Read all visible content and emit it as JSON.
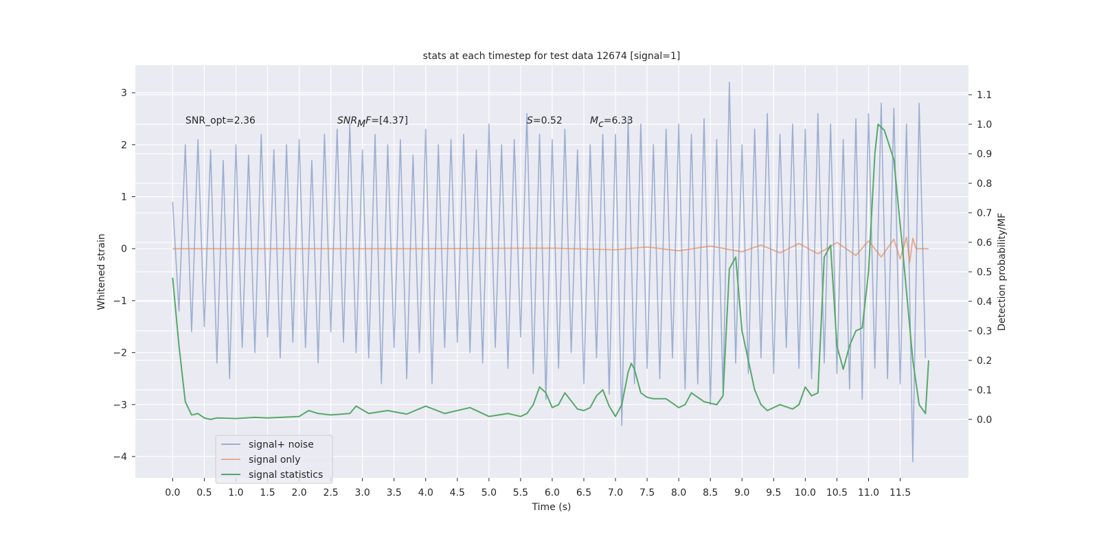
{
  "chart_data": {
    "type": "line",
    "title": "stats at each timestep for test data 12674 [signal=1]",
    "xlabel": "Time (s)",
    "ylabel": "Whitened strain",
    "y2label": "Detection probability/MF",
    "xlim": [
      -0.59,
      12.58
    ],
    "ylim": [
      -4.41,
      3.53
    ],
    "y2lim": [
      -0.198,
      1.2
    ],
    "xticks": [
      {
        "value": 0,
        "label": "0.0"
      },
      0.5,
      {
        "value": 1,
        "label": "1.0"
      },
      1.5,
      {
        "value": 2,
        "label": "2.0"
      },
      2.5,
      {
        "value": 3,
        "label": "3.0"
      },
      3.5,
      {
        "value": 4,
        "label": "4.0"
      },
      4.5,
      {
        "value": 5,
        "label": "5.0"
      },
      5.5,
      {
        "value": 6,
        "label": "6.0"
      },
      6.5,
      {
        "value": 7,
        "label": "7.0"
      },
      7.5,
      {
        "value": 8,
        "label": "8.0"
      },
      8.5,
      {
        "value": 9,
        "label": "9.0"
      },
      9.5,
      {
        "value": 10,
        "label": "10.0"
      },
      10.5,
      {
        "value": 11,
        "label": "11.0"
      },
      11.5
    ],
    "yticks": [
      {
        "value": -4,
        "label": "−4"
      },
      {
        "value": -3,
        "label": "−3"
      },
      {
        "value": -2,
        "label": "−2"
      },
      {
        "value": -1,
        "label": "−1"
      },
      0,
      1,
      2,
      3
    ],
    "y2ticks": [
      {
        "value": 0,
        "label": "0.0"
      },
      0.1,
      0.2,
      0.3,
      0.4,
      0.5,
      0.6,
      0.7,
      0.8,
      0.9,
      {
        "value": 1,
        "label": "1.0"
      },
      1.1
    ],
    "grid": true,
    "legend": "lower left",
    "annotations": [
      [
        {
          "text": "SNR_opt=2.36",
          "style": "normal"
        }
      ],
      [
        {
          "text": "SNR",
          "style": "italic"
        },
        {
          "text": "M",
          "style": "sub"
        },
        {
          "text": "F",
          "style": "italic"
        },
        {
          "text": "=[4.37]",
          "style": "normal"
        }
      ],
      [
        {
          "text": "S",
          "style": "italic"
        },
        {
          "text": "=0.52",
          "style": "normal"
        }
      ],
      [
        {
          "text": "M",
          "style": "italic"
        },
        {
          "text": "c",
          "style": "sub"
        },
        {
          "text": "=6.33",
          "style": "normal"
        }
      ]
    ],
    "series": [
      {
        "name": "signal+ noise",
        "color": "#4c72b0",
        "opacity": 0.5,
        "x": [
          0,
          0.1,
          0.2,
          0.3,
          0.4,
          0.5,
          0.6,
          0.7,
          0.8,
          0.9,
          1,
          1.1,
          1.2,
          1.3,
          1.4,
          1.5,
          1.6,
          1.7,
          1.8,
          1.9,
          2,
          2.1,
          2.2,
          2.3,
          2.4,
          2.5,
          2.6,
          2.7,
          2.8,
          2.9,
          3,
          3.1,
          3.2,
          3.3,
          3.4,
          3.5,
          3.6,
          3.7,
          3.8,
          3.9,
          4,
          4.1,
          4.2,
          4.3,
          4.4,
          4.5,
          4.6,
          4.7,
          4.8,
          4.9,
          5,
          5.1,
          5.2,
          5.3,
          5.4,
          5.5,
          5.6,
          5.7,
          5.8,
          5.9,
          6,
          6.1,
          6.2,
          6.3,
          6.4,
          6.5,
          6.6,
          6.7,
          6.8,
          6.9,
          7,
          7.1,
          7.2,
          7.3,
          7.4,
          7.5,
          7.6,
          7.7,
          7.8,
          7.9,
          8,
          8.1,
          8.2,
          8.3,
          8.4,
          8.5,
          8.6,
          8.7,
          8.8,
          8.9,
          9,
          9.1,
          9.2,
          9.3,
          9.4,
          9.5,
          9.6,
          9.7,
          9.8,
          9.9,
          10,
          10.1,
          10.2,
          10.3,
          10.4,
          10.5,
          10.6,
          10.7,
          10.8,
          10.9,
          11,
          11.1,
          11.2,
          11.3,
          11.4,
          11.5,
          11.6,
          11.7,
          11.8,
          11.9
        ],
        "values": [
          0.9,
          -1.2,
          2.0,
          -1.6,
          2.1,
          -1.5,
          1.9,
          -2.2,
          1.7,
          -2.5,
          2.0,
          -1.9,
          1.8,
          -2.0,
          2.2,
          -1.7,
          1.9,
          -2.1,
          2.0,
          -1.8,
          2.1,
          -1.9,
          1.7,
          -2.2,
          2.2,
          -1.6,
          2.3,
          -1.8,
          2.4,
          -2.0,
          1.9,
          -2.1,
          2.2,
          -2.6,
          2.0,
          -1.9,
          2.1,
          -2.5,
          1.8,
          -2.0,
          2.3,
          -2.6,
          2.0,
          -1.9,
          2.1,
          -1.8,
          2.2,
          -2.0,
          1.9,
          -2.2,
          2.4,
          -1.9,
          2.0,
          -2.3,
          2.1,
          -1.7,
          2.6,
          -2.4,
          2.2,
          -2.9,
          2.1,
          -2.3,
          2.3,
          -2.0,
          1.9,
          -2.6,
          2.0,
          -2.1,
          2.2,
          -2.8,
          2.2,
          -3.4,
          2.5,
          -2.6,
          2.4,
          -2.3,
          2.0,
          -2.5,
          2.3,
          -2.1,
          2.4,
          -2.7,
          2.2,
          -2.6,
          2.5,
          -3.0,
          2.1,
          -2.8,
          3.2,
          -2.2,
          2.0,
          -2.4,
          2.3,
          -2.1,
          2.6,
          -2.4,
          2.2,
          -1.9,
          2.4,
          -2.3,
          2.3,
          -2.5,
          2.6,
          -2.2,
          2.4,
          -2.4,
          2.1,
          -2.7,
          2.5,
          -2.9,
          2.6,
          -2.3,
          2.8,
          -2.5,
          2.7,
          -2.6,
          2.4,
          -4.1,
          2.8,
          -2.1
        ]
      },
      {
        "name": "signal only",
        "color": "#dd8452",
        "opacity": 0.6,
        "x": [
          0,
          2,
          4,
          6,
          7,
          7.5,
          8,
          8.5,
          9,
          9.3,
          9.6,
          9.9,
          10.2,
          10.5,
          10.8,
          11,
          11.2,
          11.4,
          11.5,
          11.6,
          11.65,
          11.7,
          11.75,
          11.8,
          11.95
        ],
        "values": [
          0,
          0,
          0,
          0.01,
          -0.02,
          0.03,
          -0.04,
          0.05,
          -0.06,
          0.07,
          -0.08,
          0.1,
          -0.1,
          0.12,
          -0.13,
          0.15,
          -0.16,
          0.18,
          -0.2,
          0.22,
          -0.26,
          0.2,
          0,
          0,
          0
        ]
      },
      {
        "name": "signal statistics",
        "color": "#55a868",
        "opacity": 1,
        "axis": "y2",
        "x": [
          0,
          0.1,
          0.2,
          0.3,
          0.4,
          0.5,
          0.6,
          0.7,
          1,
          1.3,
          1.5,
          1.8,
          2,
          2.15,
          2.3,
          2.5,
          2.8,
          2.9,
          3.1,
          3.4,
          3.7,
          4,
          4.3,
          4.7,
          5,
          5.3,
          5.5,
          5.6,
          5.7,
          5.8,
          5.9,
          6,
          6.1,
          6.2,
          6.4,
          6.5,
          6.6,
          6.7,
          6.8,
          6.9,
          7,
          7.1,
          7.2,
          7.25,
          7.3,
          7.4,
          7.5,
          7.6,
          7.7,
          7.8,
          8,
          8.1,
          8.2,
          8.4,
          8.6,
          8.7,
          8.8,
          8.9,
          9,
          9.1,
          9.2,
          9.3,
          9.4,
          9.6,
          9.8,
          9.9,
          10,
          10.1,
          10.2,
          10.3,
          10.4,
          10.5,
          10.6,
          10.7,
          10.8,
          10.9,
          11,
          11.1,
          11.15,
          11.25,
          11.4,
          11.55,
          11.7,
          11.8,
          11.9,
          11.95
        ],
        "values": [
          0.48,
          0.25,
          0.06,
          0.015,
          0.02,
          0.005,
          0,
          0.005,
          0.003,
          0.007,
          0.005,
          0.008,
          0.01,
          0.03,
          0.02,
          0.015,
          0.02,
          0.045,
          0.02,
          0.03,
          0.018,
          0.045,
          0.02,
          0.04,
          0.01,
          0.02,
          0.01,
          0.02,
          0.05,
          0.11,
          0.09,
          0.04,
          0.05,
          0.09,
          0.035,
          0.03,
          0.04,
          0.08,
          0.1,
          0.045,
          0.01,
          0.05,
          0.16,
          0.19,
          0.17,
          0.09,
          0.075,
          0.07,
          0.07,
          0.07,
          0.04,
          0.05,
          0.09,
          0.06,
          0.05,
          0.08,
          0.51,
          0.55,
          0.3,
          0.2,
          0.1,
          0.05,
          0.03,
          0.05,
          0.035,
          0.05,
          0.11,
          0.08,
          0.09,
          0.55,
          0.59,
          0.25,
          0.17,
          0.25,
          0.3,
          0.31,
          0.5,
          0.9,
          1.0,
          0.98,
          0.88,
          0.55,
          0.2,
          0.05,
          0.02,
          0.2
        ]
      }
    ]
  }
}
